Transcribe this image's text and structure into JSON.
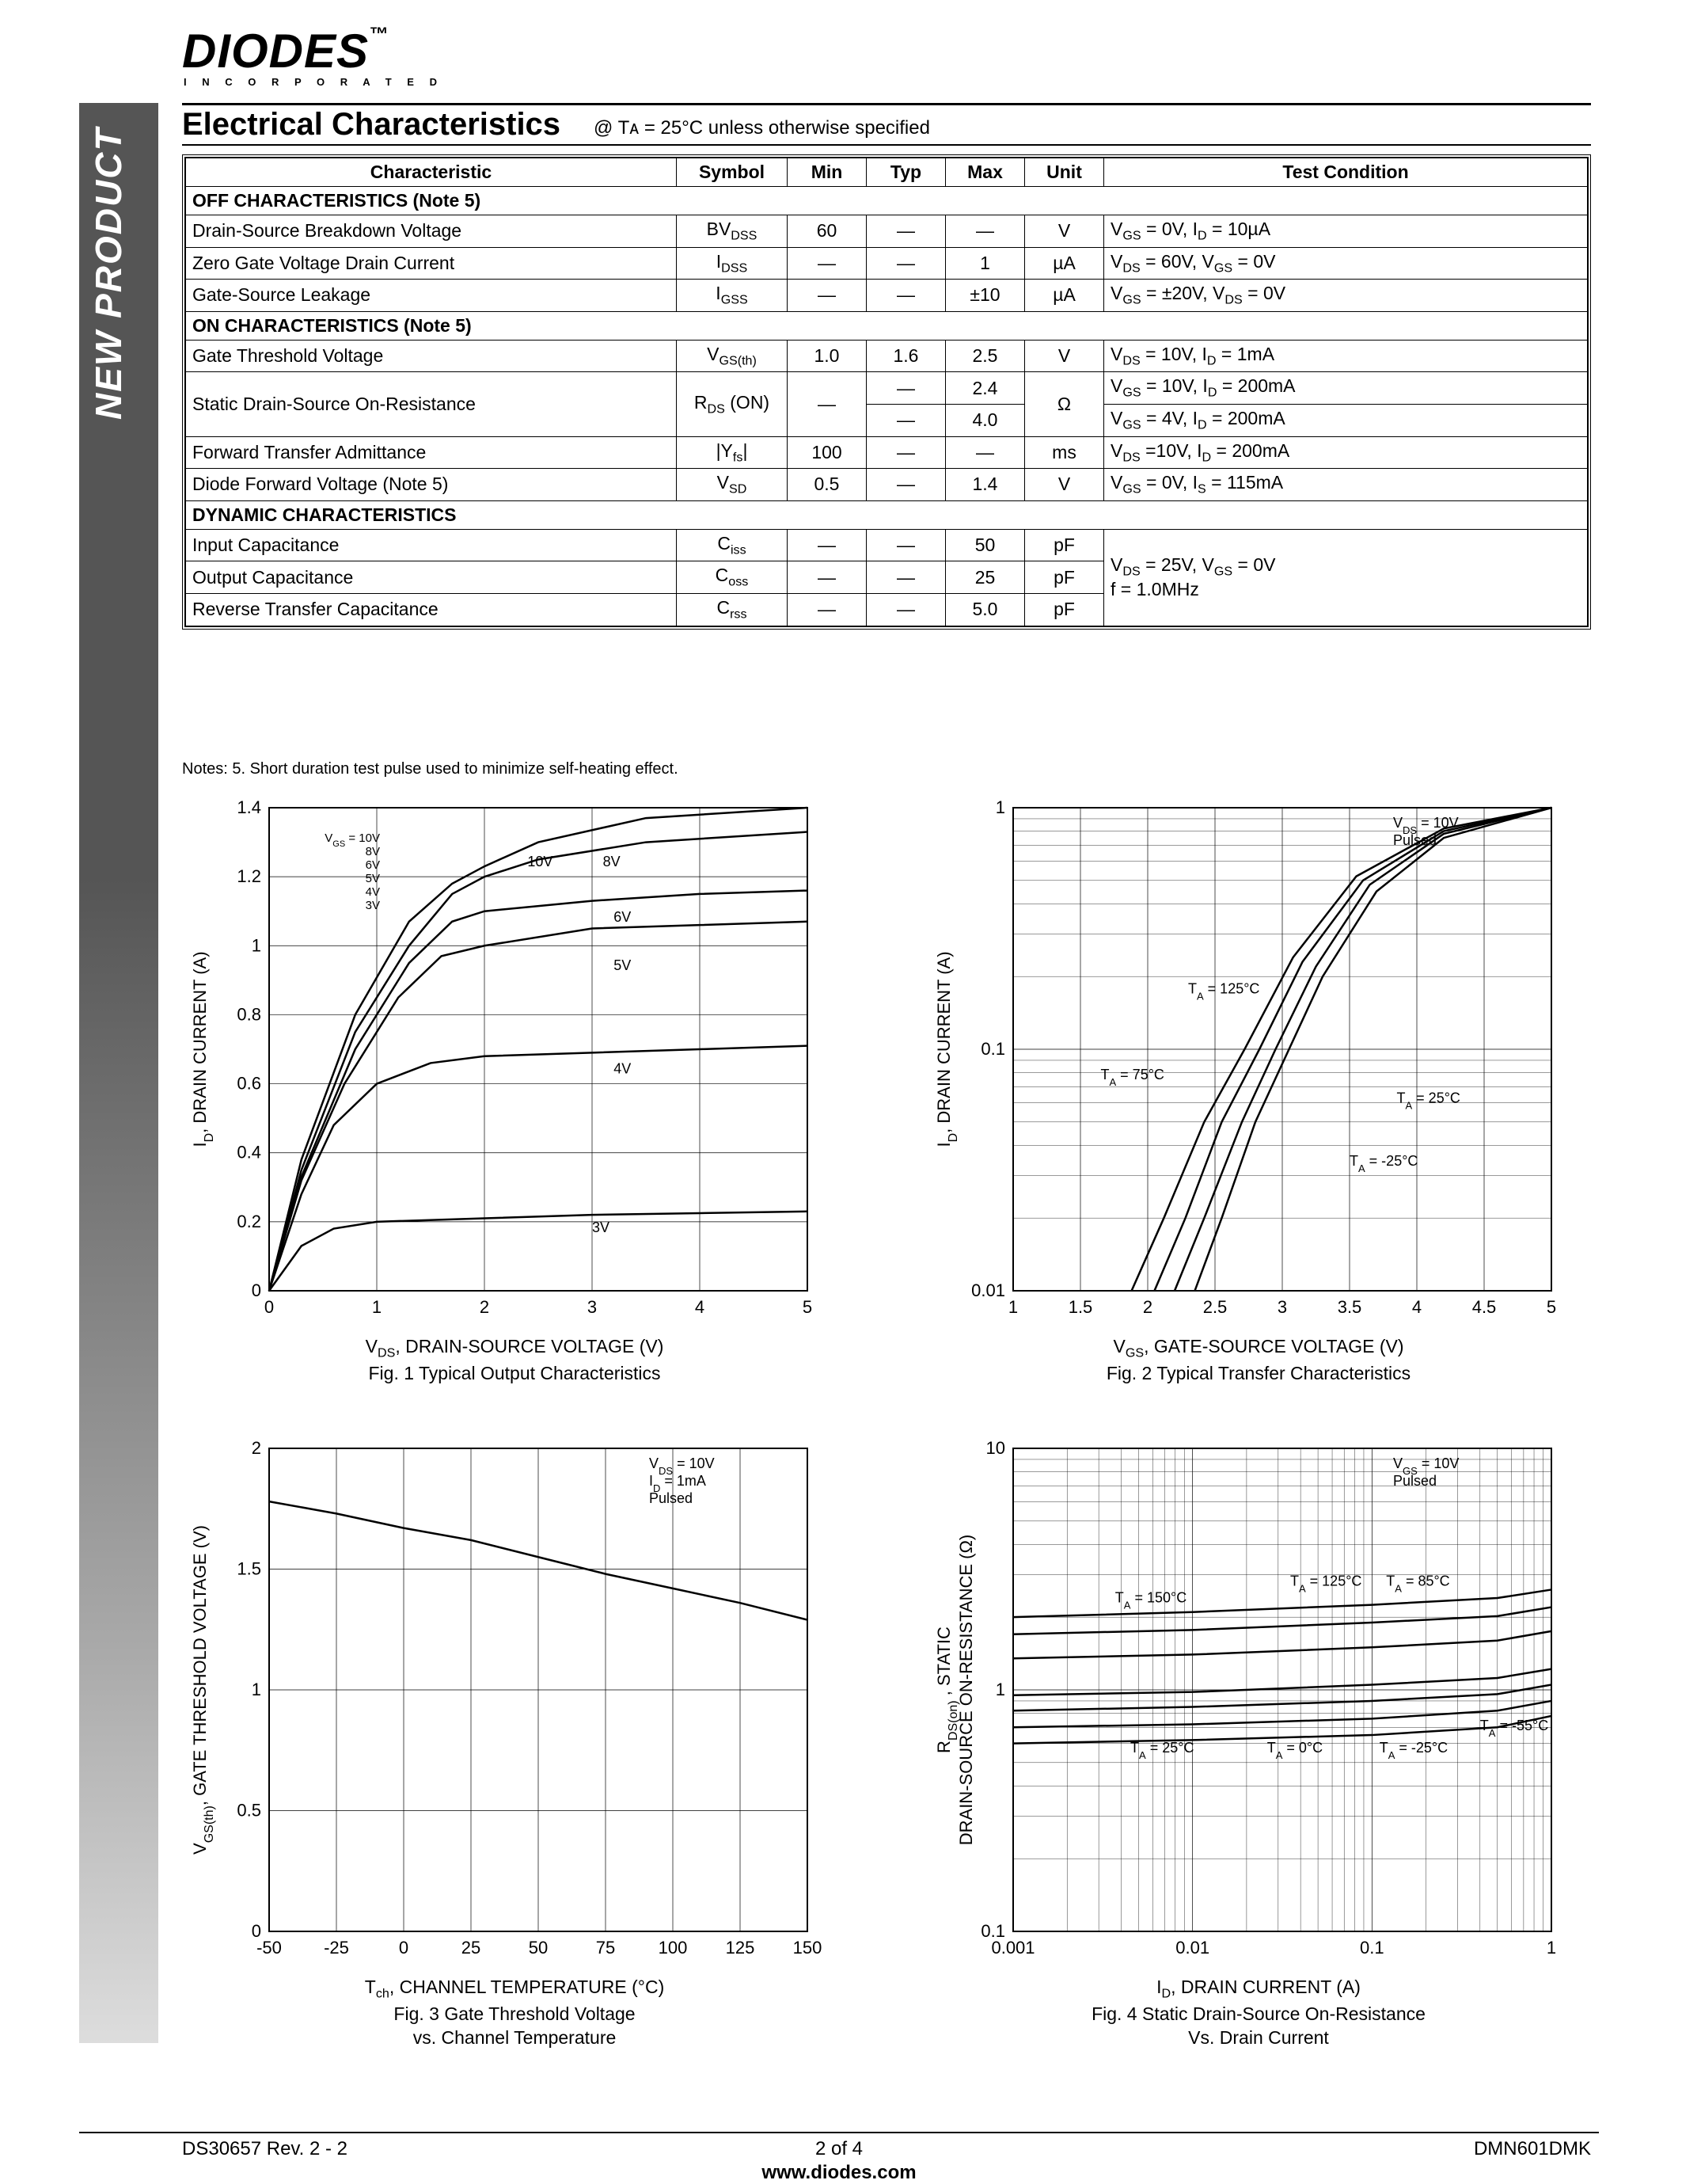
{
  "brand": {
    "name": "DIODES",
    "sub": "I N C O R P O R A T E D",
    "tm": "™"
  },
  "sidebar": "NEW PRODUCT",
  "section": {
    "title": "Electrical Characteristics",
    "cond": "@ Tᴀ = 25°C unless otherwise specified"
  },
  "table": {
    "headers": [
      "Characteristic",
      "Symbol",
      "Min",
      "Typ",
      "Max",
      "Unit",
      "Test Condition"
    ],
    "groups": [
      {
        "title": "OFF CHARACTERISTICS (Note 5)",
        "rows": [
          {
            "c": "Drain-Source Breakdown Voltage",
            "sym": "BV_DSS",
            "min": "60",
            "typ": "—",
            "max": "—",
            "unit": "V",
            "tc": "V_GS = 0V, I_D = 10µA"
          },
          {
            "c": "Zero Gate Voltage Drain Current",
            "sym": "I_DSS",
            "min": "—",
            "typ": "—",
            "max": "1",
            "unit": "µA",
            "tc": "V_DS = 60V, V_GS = 0V"
          },
          {
            "c": "Gate-Source Leakage",
            "sym": "I_GSS",
            "min": "—",
            "typ": "—",
            "max": "±10",
            "unit": "µA",
            "tc": "V_GS = ±20V, V_DS = 0V"
          }
        ]
      },
      {
        "title": "ON CHARACTERISTICS (Note 5)",
        "rows": [
          {
            "c": "Gate Threshold Voltage",
            "sym": "V_GS(th)",
            "min": "1.0",
            "typ": "1.6",
            "max": "2.5",
            "unit": "V",
            "tc": "V_DS = 10V, I_D = 1mA"
          },
          {
            "c": "Static Drain-Source On-Resistance",
            "sym": "R_DS (ON)",
            "min": "—",
            "typ": "—\n—",
            "max": "2.4\n4.0",
            "unit": "Ω",
            "tc": "V_GS = 10V, I_D = 200mA\nV_GS = 4V, I_D = 200mA",
            "rowspan": 2
          },
          {
            "c": "Forward Transfer Admittance",
            "sym": "|Y_fs|",
            "min": "100",
            "typ": "—",
            "max": "—",
            "unit": "ms",
            "tc": "V_DS =10V, I_D = 200mA"
          },
          {
            "c": "Diode Forward Voltage (Note 5)",
            "sym": "V_SD",
            "min": "0.5",
            "typ": "—",
            "max": "1.4",
            "unit": "V",
            "tc": "V_GS = 0V, I_S = 115mA"
          }
        ]
      },
      {
        "title": "DYNAMIC CHARACTERISTICS",
        "rows": [
          {
            "c": "Input Capacitance",
            "sym": "C_iss",
            "min": "—",
            "typ": "—",
            "max": "50",
            "unit": "pF",
            "tc": "V_DS = 25V, V_GS = 0V\nf = 1.0MHz",
            "tcrowspan": 3
          },
          {
            "c": "Output Capacitance",
            "sym": "C_oss",
            "min": "—",
            "typ": "—",
            "max": "25",
            "unit": "pF"
          },
          {
            "c": "Reverse Transfer Capacitance",
            "sym": "C_rss",
            "min": "—",
            "typ": "—",
            "max": "5.0",
            "unit": "pF"
          }
        ]
      }
    ]
  },
  "notes": "Notes:    5.   Short duration test pulse used to minimize self-heating effect.",
  "charts": {
    "colors": {
      "line": "#000000",
      "grid": "#000000",
      "bg": "#ffffff",
      "text": "#000000"
    },
    "fig1": {
      "type": "line",
      "title": "Fig. 1  Typical Output Characteristics",
      "xlabel": "V_DS, DRAIN-SOURCE VOLTAGE (V)",
      "ylabel": "I_D, DRAIN CURRENT (A)",
      "xlim": [
        0,
        5
      ],
      "ylim": [
        0,
        1.4
      ],
      "xt": [
        0,
        1,
        2,
        3,
        4,
        5
      ],
      "yt": [
        0,
        0.2,
        0.4,
        0.6,
        0.8,
        1.0,
        1.2,
        1.4
      ],
      "legend_box": [
        "V_GS = 10V",
        "8V",
        "6V",
        "5V",
        "4V",
        "3V"
      ],
      "series": [
        {
          "label": "3V",
          "pts": [
            [
              0,
              0
            ],
            [
              0.3,
              0.13
            ],
            [
              0.6,
              0.18
            ],
            [
              1,
              0.2
            ],
            [
              2,
              0.21
            ],
            [
              3,
              0.22
            ],
            [
              4,
              0.225
            ],
            [
              5,
              0.23
            ]
          ]
        },
        {
          "label": "4V",
          "pts": [
            [
              0,
              0
            ],
            [
              0.3,
              0.28
            ],
            [
              0.6,
              0.48
            ],
            [
              1,
              0.6
            ],
            [
              1.5,
              0.66
            ],
            [
              2,
              0.68
            ],
            [
              3,
              0.69
            ],
            [
              4,
              0.7
            ],
            [
              5,
              0.71
            ]
          ]
        },
        {
          "label": "5V",
          "pts": [
            [
              0,
              0
            ],
            [
              0.3,
              0.32
            ],
            [
              0.7,
              0.6
            ],
            [
              1.2,
              0.85
            ],
            [
              1.6,
              0.97
            ],
            [
              2,
              1.0
            ],
            [
              3,
              1.05
            ],
            [
              4,
              1.06
            ],
            [
              5,
              1.07
            ]
          ]
        },
        {
          "label": "6V",
          "pts": [
            [
              0,
              0
            ],
            [
              0.3,
              0.33
            ],
            [
              0.8,
              0.7
            ],
            [
              1.3,
              0.95
            ],
            [
              1.7,
              1.07
            ],
            [
              2,
              1.1
            ],
            [
              3,
              1.13
            ],
            [
              4,
              1.15
            ],
            [
              5,
              1.16
            ]
          ]
        },
        {
          "label": "8V",
          "pts": [
            [
              0,
              0
            ],
            [
              0.3,
              0.35
            ],
            [
              0.8,
              0.75
            ],
            [
              1.3,
              1.0
            ],
            [
              1.7,
              1.15
            ],
            [
              2,
              1.2
            ],
            [
              2.5,
              1.25
            ],
            [
              3.5,
              1.3
            ],
            [
              5,
              1.33
            ]
          ]
        },
        {
          "label": "10V",
          "pts": [
            [
              0,
              0
            ],
            [
              0.3,
              0.38
            ],
            [
              0.8,
              0.8
            ],
            [
              1.3,
              1.07
            ],
            [
              1.7,
              1.18
            ],
            [
              2,
              1.23
            ],
            [
              2.5,
              1.3
            ],
            [
              3.5,
              1.37
            ],
            [
              5,
              1.4
            ]
          ]
        }
      ],
      "series_labels": [
        [
          "10V",
          2.4,
          1.23
        ],
        [
          "8V",
          3.1,
          1.23
        ],
        [
          "6V",
          3.2,
          1.07
        ],
        [
          "5V",
          3.2,
          0.93
        ],
        [
          "4V",
          3.2,
          0.63
        ],
        [
          "3V",
          3.0,
          0.17
        ]
      ]
    },
    "fig2": {
      "type": "line-logy",
      "title": "Fig. 2  Typical Transfer Characteristics",
      "xlabel": "V_GS, GATE-SOURCE VOLTAGE (V)",
      "ylabel": "I_D, DRAIN CURRENT (A)",
      "xlim": [
        1,
        5
      ],
      "ylim": [
        0.01,
        1.0
      ],
      "xt": [
        1,
        1.5,
        2,
        2.5,
        3,
        3.5,
        4,
        4.5,
        5
      ],
      "yt": [
        0.01,
        0.1,
        1.0
      ],
      "annot": [
        "V_DS = 10V",
        "Pulsed"
      ],
      "series": [
        {
          "label": "T_A = -25°C",
          "pts": [
            [
              2.35,
              0.01
            ],
            [
              2.55,
              0.02
            ],
            [
              2.8,
              0.05
            ],
            [
              3.05,
              0.1
            ],
            [
              3.3,
              0.2
            ],
            [
              3.7,
              0.45
            ],
            [
              4.2,
              0.75
            ],
            [
              5,
              1.0
            ]
          ]
        },
        {
          "label": "T_A = 25°C",
          "pts": [
            [
              2.2,
              0.01
            ],
            [
              2.42,
              0.02
            ],
            [
              2.7,
              0.05
            ],
            [
              2.95,
              0.1
            ],
            [
              3.25,
              0.22
            ],
            [
              3.65,
              0.48
            ],
            [
              4.2,
              0.78
            ],
            [
              5,
              1.0
            ]
          ]
        },
        {
          "label": "T_A = 75°C",
          "pts": [
            [
              2.05,
              0.01
            ],
            [
              2.28,
              0.02
            ],
            [
              2.55,
              0.05
            ],
            [
              2.83,
              0.1
            ],
            [
              3.15,
              0.23
            ],
            [
              3.6,
              0.5
            ],
            [
              4.2,
              0.8
            ],
            [
              5,
              1.0
            ]
          ]
        },
        {
          "label": "T_A = 125°C",
          "pts": [
            [
              1.88,
              0.01
            ],
            [
              2.12,
              0.02
            ],
            [
              2.42,
              0.05
            ],
            [
              2.72,
              0.1
            ],
            [
              3.08,
              0.24
            ],
            [
              3.55,
              0.52
            ],
            [
              4.2,
              0.82
            ],
            [
              5,
              1.0
            ]
          ]
        }
      ],
      "series_labels": [
        [
          "T_A = 125°C",
          2.3,
          0.17
        ],
        [
          "T_A = 75°C",
          1.65,
          0.075
        ],
        [
          "T_A = 25°C",
          3.85,
          0.06
        ],
        [
          "T_A = -25°C",
          3.5,
          0.033
        ]
      ]
    },
    "fig3": {
      "type": "line",
      "title": "Fig. 3  Gate Threshold Voltage\nvs. Channel Temperature",
      "xlabel": "T_ch, CHANNEL TEMPERATURE (°C)",
      "ylabel": "V_GS(th), GATE THRESHOLD VOLTAGE (V)",
      "xlim": [
        -50,
        150
      ],
      "ylim": [
        0,
        2
      ],
      "xt": [
        -50,
        -25,
        0,
        25,
        50,
        75,
        100,
        125,
        150
      ],
      "yt": [
        0,
        0.5,
        1,
        1.5,
        2
      ],
      "annot": [
        "V_DS = 10V",
        "I_D = 1mA",
        "Pulsed"
      ],
      "series": [
        {
          "label": "",
          "pts": [
            [
              -50,
              1.78
            ],
            [
              -25,
              1.73
            ],
            [
              0,
              1.67
            ],
            [
              25,
              1.62
            ],
            [
              50,
              1.55
            ],
            [
              75,
              1.48
            ],
            [
              100,
              1.42
            ],
            [
              125,
              1.36
            ],
            [
              150,
              1.29
            ]
          ]
        }
      ]
    },
    "fig4": {
      "type": "line-loglog",
      "title": "Fig. 4 Static Drain-Source On-Resistance\nVs. Drain Current",
      "xlabel": "I_D, DRAIN CURRENT (A)",
      "ylabel": "R_DS(on) , STATIC\nDRAIN-SOURCE ON-RESISTANCE (Ω)",
      "xlim": [
        0.001,
        1
      ],
      "ylim": [
        0.1,
        10
      ],
      "xt": [
        0.001,
        0.01,
        0.1,
        1
      ],
      "yt": [
        0.1,
        1,
        10
      ],
      "annot": [
        "V_GS = 10V",
        "Pulsed"
      ],
      "series": [
        {
          "label": "T_A = -55°C",
          "pts": [
            [
              0.001,
              0.6
            ],
            [
              0.01,
              0.62
            ],
            [
              0.1,
              0.65
            ],
            [
              0.5,
              0.7
            ],
            [
              1,
              0.78
            ]
          ]
        },
        {
          "label": "T_A = -25°C",
          "pts": [
            [
              0.001,
              0.7
            ],
            [
              0.01,
              0.72
            ],
            [
              0.1,
              0.76
            ],
            [
              0.5,
              0.82
            ],
            [
              1,
              0.9
            ]
          ]
        },
        {
          "label": "T_A = 0°C",
          "pts": [
            [
              0.001,
              0.82
            ],
            [
              0.01,
              0.85
            ],
            [
              0.1,
              0.9
            ],
            [
              0.5,
              0.96
            ],
            [
              1,
              1.05
            ]
          ]
        },
        {
          "label": "T_A = 25°C",
          "pts": [
            [
              0.001,
              0.95
            ],
            [
              0.01,
              0.98
            ],
            [
              0.1,
              1.05
            ],
            [
              0.5,
              1.12
            ],
            [
              1,
              1.22
            ]
          ]
        },
        {
          "label": "T_A = 85°C",
          "pts": [
            [
              0.001,
              1.35
            ],
            [
              0.01,
              1.4
            ],
            [
              0.1,
              1.5
            ],
            [
              0.5,
              1.6
            ],
            [
              1,
              1.75
            ]
          ]
        },
        {
          "label": "T_A = 125°C",
          "pts": [
            [
              0.001,
              1.7
            ],
            [
              0.01,
              1.77
            ],
            [
              0.1,
              1.9
            ],
            [
              0.5,
              2.02
            ],
            [
              1,
              2.2
            ]
          ]
        },
        {
          "label": "T_A = 150°C",
          "pts": [
            [
              0.001,
              2.0
            ],
            [
              0.01,
              2.1
            ],
            [
              0.1,
              2.25
            ],
            [
              0.5,
              2.4
            ],
            [
              1,
              2.6
            ]
          ]
        }
      ],
      "series_labels": [
        [
          "T_A = 150°C",
          0.0037,
          2.3
        ],
        [
          "T_A = 125°C",
          0.035,
          2.7
        ],
        [
          "T_A = 85°C",
          0.12,
          2.7
        ],
        [
          "T_A = 25°C",
          0.0045,
          0.55
        ],
        [
          "T_A = 0°C",
          0.026,
          0.55
        ],
        [
          "T_A = -25°C",
          0.11,
          0.55
        ],
        [
          "T_A = -55°C",
          0.4,
          0.68
        ]
      ]
    }
  },
  "footer": {
    "left": "DS30657 Rev. 2 - 2",
    "center": "2 of 4",
    "right": "DMN601DMK",
    "url": "www.diodes.com"
  }
}
